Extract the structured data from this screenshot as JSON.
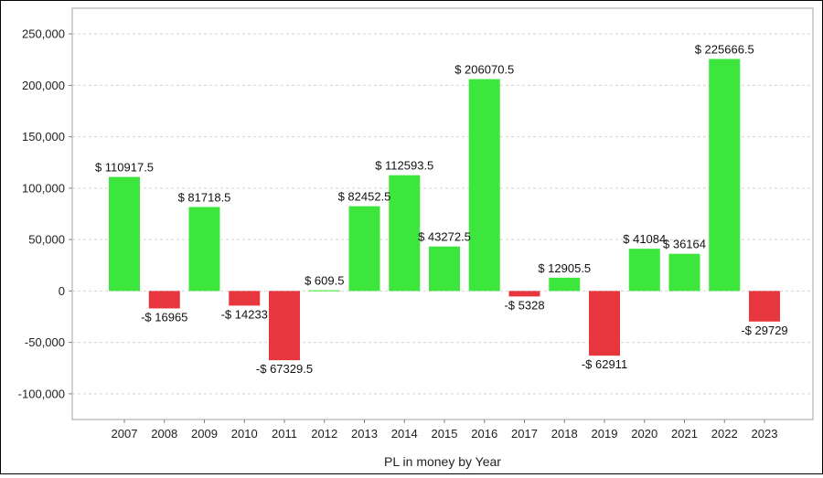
{
  "chart_data": {
    "type": "bar",
    "xlabel": "PL in money by Year",
    "ylabel": "",
    "ylim": [
      -125000,
      275000
    ],
    "yticks": [
      250000,
      200000,
      150000,
      100000,
      50000,
      0,
      -50000,
      -100000
    ],
    "ytick_labels": [
      "250,000",
      "200,000",
      "150,000",
      "100,000",
      "50,000",
      "0",
      "-50,000",
      "-100,000"
    ],
    "grid": true,
    "categories": [
      "2007",
      "2008",
      "2009",
      "2010",
      "2011",
      "2012",
      "2013",
      "2014",
      "2015",
      "2016",
      "2017",
      "2018",
      "2019",
      "2020",
      "2021",
      "2022",
      "2023"
    ],
    "values": [
      110917.5,
      -16965,
      81718.5,
      -14233,
      -67329.5,
      609.5,
      82452.5,
      112593.5,
      43272.5,
      206070.5,
      -5328,
      12905.5,
      -62911,
      41084,
      36164,
      225666.5,
      -29729
    ],
    "data_labels": [
      "$ 110917.5",
      "-$ 16965",
      "$ 81718.5",
      "-$ 14233",
      "-$ 67329.5",
      "$ 609.5",
      "$ 82452.5",
      "$ 112593.5",
      "$ 43272.5",
      "$ 206070.5",
      "-$ 5328",
      "$ 12905.5",
      "-$ 62911",
      "$ 41084",
      "$ 36164",
      "$ 225666.5",
      "-$ 29729"
    ],
    "colors": {
      "positive": "#3de63d",
      "negative": "#e8363f"
    }
  }
}
